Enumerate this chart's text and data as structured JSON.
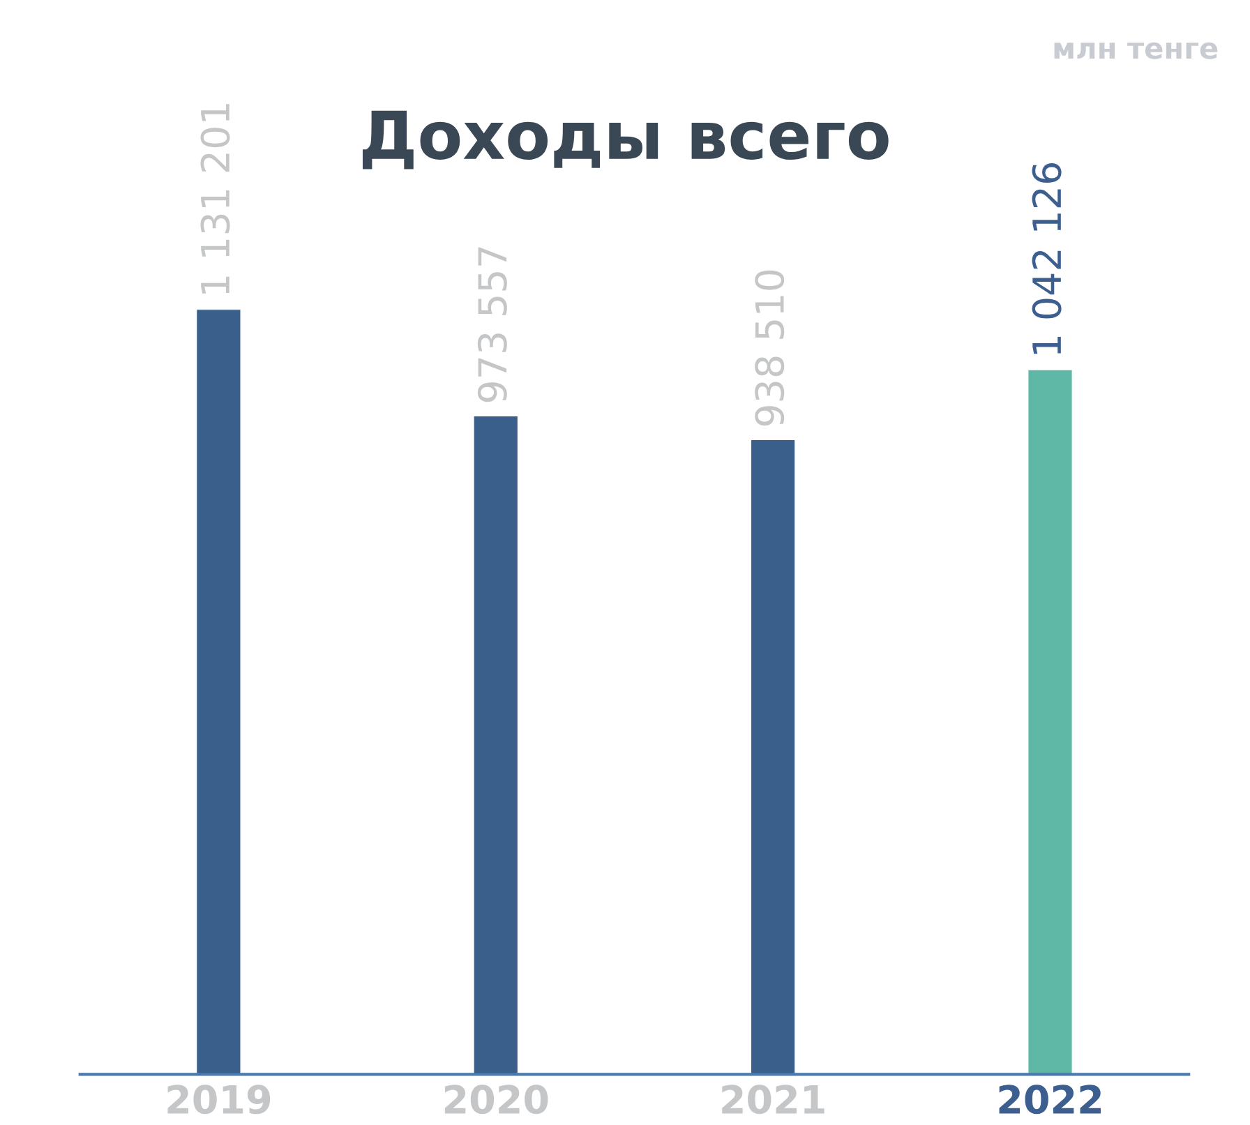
{
  "chart_data": {
    "type": "bar",
    "title": "Доходы всего",
    "annotations": [
      "млн тенге"
    ],
    "categories": [
      "2019",
      "2020",
      "2021",
      "2022"
    ],
    "values": [
      1131201,
      973557,
      938510,
      1042126
    ],
    "colors": [
      "#3a5f8a",
      "#3a5f8a",
      "#3a5f8a",
      "#5fb8a5"
    ],
    "value_labels": [
      "1 131 201",
      "973 557",
      "938 510",
      "1 042 126"
    ],
    "grid": false,
    "legend": false
  }
}
